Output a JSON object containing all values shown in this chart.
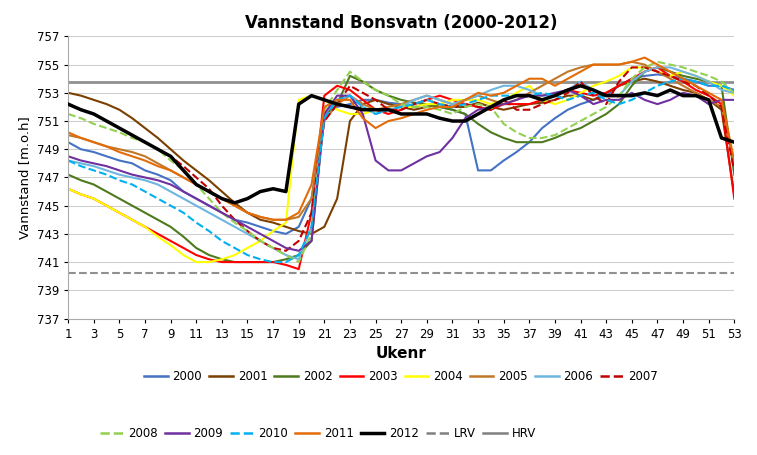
{
  "title": "Vannstand Bonsvatn (2000-2012)",
  "xlabel": "Ukenr",
  "ylabel": "Vannstand [m.o.h]",
  "ylim": [
    737,
    757
  ],
  "xlim": [
    1,
    53
  ],
  "yticks": [
    737,
    739,
    741,
    743,
    745,
    747,
    749,
    751,
    753,
    755,
    757
  ],
  "xticks": [
    1,
    3,
    5,
    7,
    9,
    11,
    13,
    15,
    17,
    19,
    21,
    23,
    25,
    27,
    29,
    31,
    33,
    35,
    37,
    39,
    41,
    43,
    45,
    47,
    49,
    51,
    53
  ],
  "HRV": 753.8,
  "LRV": 740.2,
  "series": {
    "2000": {
      "color": "#4472C4",
      "linestyle": "solid",
      "linewidth": 1.5,
      "values": [
        749.5,
        749.0,
        748.8,
        748.5,
        748.2,
        748.0,
        747.5,
        747.2,
        746.8,
        746.0,
        745.5,
        745.0,
        744.5,
        744.0,
        743.8,
        743.5,
        743.2,
        743.0,
        743.5,
        745.5,
        751.5,
        752.0,
        752.2,
        752.5,
        752.5,
        752.3,
        752.2,
        752.0,
        752.2,
        752.0,
        751.8,
        751.5,
        747.5,
        747.5,
        748.2,
        748.8,
        749.5,
        750.5,
        751.2,
        751.8,
        752.2,
        752.5,
        752.8,
        753.5,
        754.0,
        754.2,
        754.3,
        754.2,
        754.0,
        753.8,
        753.5,
        753.5,
        753.2
      ]
    },
    "2001": {
      "color": "#7B3F00",
      "linestyle": "solid",
      "linewidth": 1.5,
      "values": [
        753.0,
        752.8,
        752.5,
        752.2,
        751.8,
        751.2,
        750.5,
        749.8,
        749.0,
        748.2,
        747.5,
        746.8,
        746.0,
        745.2,
        744.5,
        744.0,
        743.8,
        743.5,
        743.2,
        743.0,
        743.5,
        745.5,
        751.0,
        752.2,
        752.5,
        752.2,
        752.0,
        751.8,
        752.0,
        752.2,
        752.0,
        752.0,
        752.3,
        752.0,
        751.8,
        752.0,
        752.2,
        752.3,
        752.5,
        752.8,
        752.8,
        752.5,
        753.0,
        753.5,
        753.8,
        754.0,
        753.8,
        753.5,
        753.2,
        753.0,
        752.5,
        751.8,
        745.8
      ]
    },
    "2002": {
      "color": "#4E7A1E",
      "linestyle": "solid",
      "linewidth": 1.5,
      "values": [
        747.2,
        746.8,
        746.5,
        746.0,
        745.5,
        745.0,
        744.5,
        744.0,
        743.5,
        742.8,
        742.0,
        741.5,
        741.2,
        741.0,
        741.0,
        741.0,
        741.0,
        741.2,
        741.5,
        742.5,
        751.5,
        752.2,
        754.2,
        753.8,
        753.2,
        752.8,
        752.5,
        752.3,
        752.2,
        752.0,
        751.8,
        751.5,
        750.8,
        750.2,
        749.8,
        749.5,
        749.5,
        749.5,
        749.8,
        750.2,
        750.5,
        751.0,
        751.5,
        752.2,
        753.5,
        754.5,
        754.8,
        754.5,
        754.2,
        754.0,
        753.8,
        753.5,
        747.2
      ]
    },
    "2003": {
      "color": "#FF0000",
      "linestyle": "solid",
      "linewidth": 1.5,
      "values": [
        746.2,
        745.8,
        745.5,
        745.0,
        744.5,
        744.0,
        743.5,
        743.0,
        742.5,
        742.0,
        741.5,
        741.2,
        741.0,
        741.0,
        741.0,
        741.0,
        741.0,
        740.8,
        740.5,
        744.5,
        752.8,
        753.5,
        753.2,
        752.5,
        751.8,
        751.5,
        751.8,
        752.2,
        752.5,
        752.8,
        752.5,
        752.2,
        752.0,
        751.8,
        752.2,
        752.2,
        752.2,
        752.5,
        752.8,
        753.2,
        753.0,
        752.8,
        753.0,
        753.5,
        754.0,
        754.5,
        754.8,
        754.2,
        753.8,
        753.2,
        752.8,
        752.2,
        745.5
      ]
    },
    "2004": {
      "color": "#FFFF00",
      "linestyle": "solid",
      "linewidth": 1.5,
      "values": [
        746.2,
        745.8,
        745.5,
        745.0,
        744.5,
        744.0,
        743.5,
        742.8,
        742.2,
        741.5,
        741.0,
        741.0,
        741.2,
        741.5,
        742.0,
        742.5,
        743.2,
        743.8,
        752.5,
        752.8,
        752.5,
        751.8,
        751.5,
        751.5,
        751.8,
        751.8,
        752.0,
        752.0,
        752.2,
        752.2,
        752.5,
        752.5,
        752.5,
        752.2,
        752.5,
        753.0,
        753.5,
        752.5,
        752.2,
        752.5,
        753.0,
        753.5,
        753.8,
        754.2,
        754.8,
        754.8,
        754.5,
        754.2,
        754.5,
        754.2,
        753.8,
        753.5,
        752.8
      ]
    },
    "2005": {
      "color": "#C07828",
      "linestyle": "solid",
      "linewidth": 1.5,
      "values": [
        750.0,
        749.8,
        749.5,
        749.2,
        749.0,
        748.8,
        748.5,
        748.0,
        747.5,
        747.0,
        746.5,
        746.0,
        745.5,
        745.0,
        744.5,
        744.2,
        744.0,
        744.0,
        744.2,
        745.5,
        751.0,
        752.2,
        752.8,
        752.2,
        751.8,
        752.0,
        752.2,
        752.5,
        752.8,
        752.5,
        752.2,
        752.5,
        752.8,
        752.5,
        752.2,
        752.5,
        753.0,
        753.5,
        754.0,
        754.5,
        754.8,
        755.0,
        755.0,
        755.0,
        755.2,
        755.0,
        754.5,
        754.0,
        753.5,
        753.0,
        752.5,
        752.0,
        748.0
      ]
    },
    "2006": {
      "color": "#6EB5E0",
      "linestyle": "solid",
      "linewidth": 1.5,
      "values": [
        748.2,
        748.0,
        747.8,
        747.5,
        747.2,
        747.0,
        746.8,
        746.5,
        746.0,
        745.5,
        745.0,
        744.5,
        744.0,
        743.5,
        743.0,
        742.5,
        742.0,
        741.5,
        741.2,
        743.5,
        751.5,
        752.5,
        752.8,
        752.0,
        751.5,
        751.8,
        752.0,
        752.5,
        752.8,
        752.5,
        752.2,
        752.5,
        752.8,
        753.2,
        753.5,
        753.5,
        753.2,
        752.8,
        752.8,
        753.2,
        753.8,
        753.2,
        752.8,
        752.8,
        753.8,
        754.5,
        754.8,
        754.8,
        754.5,
        754.2,
        753.8,
        753.2,
        753.0
      ]
    },
    "2007": {
      "color": "#C00000",
      "linestyle": "dashed",
      "linewidth": 1.5,
      "values": [
        752.2,
        751.8,
        751.5,
        751.0,
        750.5,
        750.0,
        749.5,
        749.0,
        748.5,
        747.8,
        747.0,
        746.2,
        745.0,
        744.0,
        743.2,
        742.5,
        742.0,
        741.8,
        742.5,
        744.5,
        751.0,
        752.2,
        753.5,
        753.0,
        752.5,
        751.8,
        751.8,
        752.2,
        752.5,
        752.2,
        752.0,
        752.2,
        752.0,
        751.8,
        752.5,
        751.8,
        751.8,
        752.2,
        752.5,
        753.0,
        753.8,
        752.8,
        752.2,
        753.8,
        754.8,
        754.8,
        754.5,
        754.2,
        753.8,
        753.5,
        752.8,
        752.0,
        747.5
      ]
    },
    "2008": {
      "color": "#92D050",
      "linestyle": "dashed",
      "linewidth": 1.5,
      "values": [
        751.5,
        751.2,
        750.8,
        750.5,
        750.2,
        749.8,
        749.5,
        749.0,
        748.2,
        747.5,
        746.5,
        745.5,
        744.5,
        743.8,
        743.2,
        742.5,
        742.0,
        741.5,
        741.0,
        743.0,
        751.8,
        753.2,
        754.5,
        753.8,
        753.2,
        752.8,
        752.2,
        752.0,
        752.0,
        751.8,
        751.5,
        752.0,
        752.2,
        752.0,
        750.8,
        750.2,
        749.8,
        749.8,
        750.0,
        750.5,
        751.0,
        751.5,
        752.0,
        752.8,
        754.0,
        754.8,
        755.2,
        755.0,
        754.8,
        754.5,
        754.2,
        753.8,
        753.0
      ]
    },
    "2009": {
      "color": "#7030A0",
      "linestyle": "solid",
      "linewidth": 1.5,
      "values": [
        748.5,
        748.2,
        748.0,
        747.8,
        747.5,
        747.2,
        747.0,
        746.8,
        746.5,
        746.0,
        745.5,
        745.0,
        744.5,
        744.0,
        743.5,
        743.0,
        742.5,
        742.0,
        741.8,
        742.5,
        751.5,
        752.8,
        752.8,
        751.5,
        748.2,
        747.5,
        747.5,
        748.0,
        748.5,
        748.8,
        749.8,
        751.2,
        751.8,
        752.0,
        752.2,
        752.5,
        752.8,
        752.8,
        753.0,
        753.2,
        752.8,
        752.2,
        752.5,
        752.5,
        753.0,
        752.5,
        752.2,
        752.5,
        753.0,
        752.8,
        752.2,
        752.5,
        752.5
      ]
    },
    "2010": {
      "color": "#00B0F0",
      "linestyle": "dashed",
      "linewidth": 1.5,
      "values": [
        748.2,
        747.8,
        747.5,
        747.2,
        746.8,
        746.5,
        746.0,
        745.5,
        745.0,
        744.5,
        743.8,
        743.2,
        742.5,
        742.0,
        741.5,
        741.2,
        741.0,
        741.0,
        741.5,
        743.5,
        751.2,
        752.5,
        752.8,
        752.0,
        751.5,
        751.8,
        752.0,
        752.2,
        752.5,
        752.2,
        752.0,
        752.2,
        752.5,
        752.8,
        752.8,
        752.8,
        752.8,
        753.0,
        752.8,
        752.5,
        752.8,
        753.0,
        752.5,
        752.2,
        752.5,
        753.0,
        753.5,
        753.8,
        754.0,
        753.8,
        753.5,
        753.5,
        753.2
      ]
    },
    "2011": {
      "color": "#E36C09",
      "linestyle": "solid",
      "linewidth": 1.5,
      "values": [
        750.2,
        749.8,
        749.5,
        749.2,
        748.8,
        748.5,
        748.2,
        747.8,
        747.5,
        747.0,
        746.5,
        746.0,
        745.5,
        745.0,
        744.5,
        744.2,
        744.0,
        744.0,
        744.5,
        746.5,
        752.0,
        752.5,
        752.5,
        751.2,
        750.5,
        751.0,
        751.2,
        751.5,
        751.8,
        752.0,
        752.0,
        752.5,
        753.0,
        752.8,
        753.0,
        753.5,
        754.0,
        754.0,
        753.5,
        754.0,
        754.5,
        755.0,
        755.0,
        755.0,
        755.2,
        755.5,
        755.0,
        754.5,
        754.0,
        753.5,
        753.0,
        752.5,
        748.2
      ]
    },
    "2012": {
      "color": "#000000",
      "linestyle": "solid",
      "linewidth": 2.5,
      "values": [
        752.2,
        751.8,
        751.5,
        751.0,
        750.5,
        750.0,
        749.5,
        749.0,
        748.5,
        747.5,
        746.5,
        746.0,
        745.5,
        745.2,
        745.5,
        746.0,
        746.2,
        746.0,
        752.2,
        752.8,
        752.5,
        752.2,
        752.0,
        751.8,
        751.8,
        751.8,
        751.5,
        751.5,
        751.5,
        751.2,
        751.0,
        751.0,
        751.5,
        752.0,
        752.5,
        752.8,
        752.8,
        752.5,
        752.8,
        753.2,
        753.5,
        753.2,
        752.8,
        752.8,
        752.8,
        753.0,
        752.8,
        753.2,
        752.8,
        752.8,
        752.5,
        749.8,
        749.5
      ]
    }
  },
  "legend_rows": [
    [
      "2000",
      "2001",
      "2002",
      "2003",
      "2004",
      "2005",
      "2006",
      "2007"
    ],
    [
      "2008",
      "2009",
      "2010",
      "2011",
      "2012",
      "LRV",
      "HRV"
    ]
  ],
  "colors_styles": {
    "2000": [
      "#4472C4",
      "solid"
    ],
    "2001": [
      "#7B3F00",
      "solid"
    ],
    "2002": [
      "#4E7A1E",
      "solid"
    ],
    "2003": [
      "#FF0000",
      "solid"
    ],
    "2004": [
      "#FFFF00",
      "solid"
    ],
    "2005": [
      "#C07828",
      "solid"
    ],
    "2006": [
      "#6EB5E0",
      "solid"
    ],
    "2007": [
      "#C00000",
      "dashed"
    ],
    "2008": [
      "#92D050",
      "dashed"
    ],
    "2009": [
      "#7030A0",
      "solid"
    ],
    "2010": [
      "#00B0F0",
      "dashed"
    ],
    "2011": [
      "#E36C09",
      "solid"
    ],
    "2012": [
      "#000000",
      "solid"
    ],
    "LRV": [
      "#808080",
      "dashed"
    ],
    "HRV": [
      "#808080",
      "solid"
    ]
  }
}
